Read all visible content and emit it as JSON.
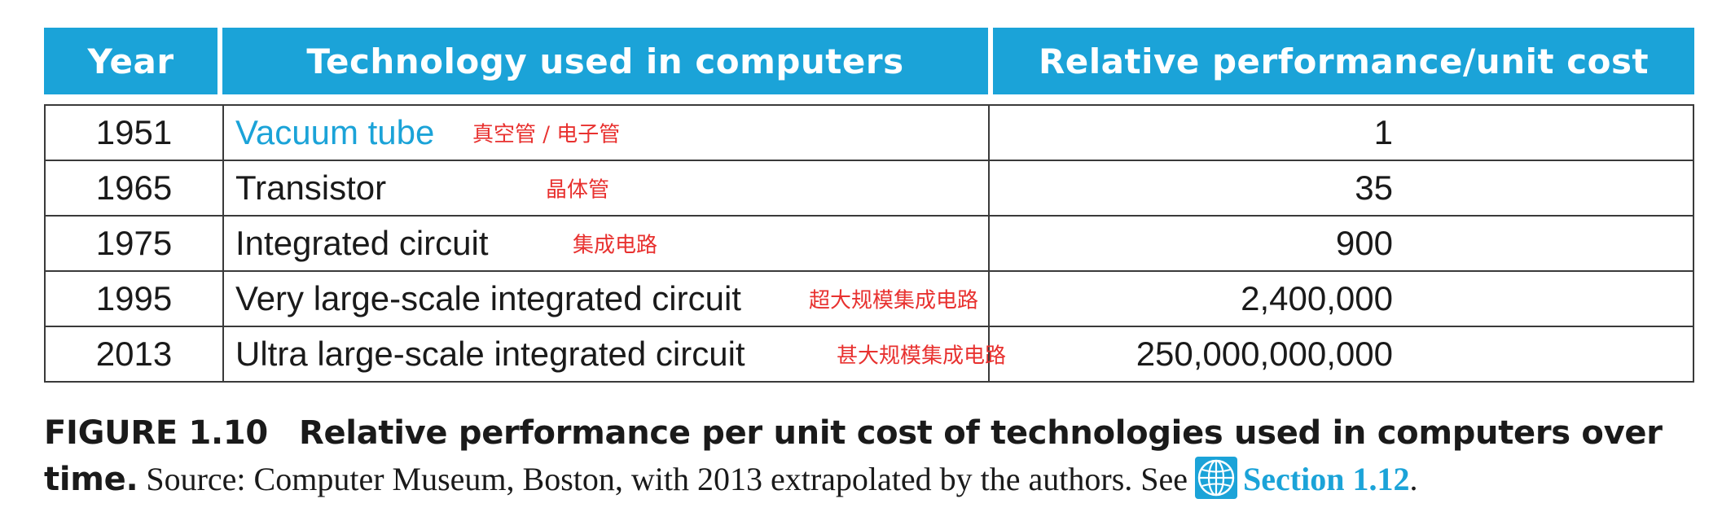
{
  "table": {
    "headers": {
      "year": "Year",
      "technology": "Technology used in computers",
      "performance": "Relative performance/unit cost"
    },
    "rows": [
      {
        "year": "1951",
        "technology": "Vacuum tube",
        "note": "真空管 / 电子管",
        "performance": "1"
      },
      {
        "year": "1965",
        "technology": "Transistor",
        "note": "晶体管",
        "performance": "35"
      },
      {
        "year": "1975",
        "technology": "Integrated circuit",
        "note": "集成电路",
        "performance": "900"
      },
      {
        "year": "1995",
        "technology": "Very large-scale integrated circuit",
        "note": "超大规模集成电路",
        "performance": "2,400,000"
      },
      {
        "year": "2013",
        "technology": "Ultra large-scale integrated circuit",
        "note": "甚大规模集成电路",
        "performance": "250,000,000,000"
      }
    ]
  },
  "caption": {
    "label": "FIGURE 1.10",
    "title": "Relative performance per unit cost of technologies used in computers over time.",
    "source": " Source: Computer Museum, Boston, with 2013 extrapolated by the authors. See",
    "link_text": "Section 1.12",
    "end": "."
  },
  "colors": {
    "header_bg": "#1ba3d8",
    "highlight_text": "#1ba3d8",
    "note_text": "#e8312f",
    "link_text": "#1ba3d8"
  },
  "icons": {
    "web_reference": "globe-icon"
  }
}
